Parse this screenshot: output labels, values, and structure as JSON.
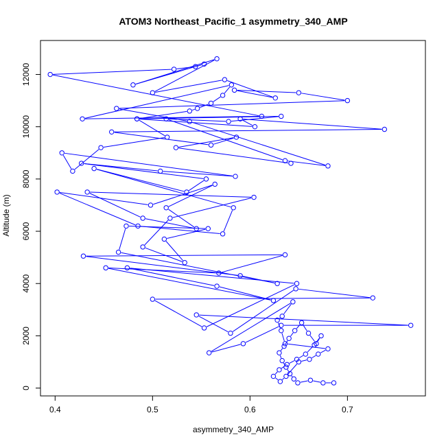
{
  "chart_data": {
    "type": "line",
    "title": "ATOM3 Northeast_Pacific_1 asymmetry_340_AMP",
    "xlabel": "asymmetry_340_AMP",
    "ylabel": "Altitude (m)",
    "xlim": [
      0.385,
      0.78
    ],
    "ylim": [
      -300,
      13300
    ],
    "x_ticks": [
      0.4,
      0.5,
      0.6,
      0.7
    ],
    "y_ticks": [
      0,
      2000,
      4000,
      6000,
      8000,
      10000,
      12000
    ],
    "grid": false,
    "legend": "none",
    "line_color": "#0000ff",
    "marker": "open-circle",
    "series": [
      {
        "x": [
          0.686,
          0.675,
          0.662,
          0.649,
          0.645,
          0.641,
          0.637,
          0.633,
          0.63,
          0.635,
          0.64,
          0.646,
          0.653,
          0.66,
          0.668,
          0.673,
          0.666,
          0.657,
          0.648,
          0.638,
          0.63,
          0.624,
          0.631,
          0.637,
          0.65,
          0.661,
          0.67,
          0.68,
          0.636,
          0.632,
          0.628,
          0.633,
          0.644,
          0.558,
          0.593,
          0.632,
          0.765,
          0.545,
          0.58,
          0.647,
          0.726,
          0.5,
          0.553,
          0.648,
          0.474,
          0.566,
          0.624,
          0.452,
          0.568,
          0.636,
          0.429,
          0.59,
          0.628,
          0.465,
          0.473,
          0.557,
          0.512,
          0.533,
          0.49,
          0.518,
          0.604,
          0.433,
          0.49,
          0.545,
          0.514,
          0.564,
          0.498,
          0.402,
          0.485,
          0.572,
          0.583,
          0.44,
          0.535,
          0.555,
          0.427,
          0.508,
          0.585,
          0.407,
          0.418,
          0.447,
          0.515,
          0.484,
          0.538,
          0.546,
          0.56,
          0.572,
          0.581,
          0.428,
          0.612,
          0.395,
          0.522,
          0.544,
          0.553,
          0.48,
          0.566,
          0.5,
          0.574,
          0.626,
          0.584,
          0.65,
          0.7,
          0.463,
          0.538,
          0.68,
          0.636,
          0.514,
          0.578,
          0.632,
          0.484,
          0.605,
          0.59,
          0.738,
          0.458,
          0.56,
          0.586,
          0.524,
          0.642
        ],
        "y": [
          200,
          200,
          300,
          200,
          350,
          550,
          800,
          1050,
          1350,
          1600,
          1900,
          2200,
          2500,
          2100,
          1700,
          2000,
          1650,
          1300,
          1100,
          900,
          700,
          450,
          250,
          450,
          1000,
          1100,
          1300,
          1500,
          1700,
          2200,
          2600,
          2750,
          3300,
          1350,
          1700,
          2400,
          2400,
          2800,
          2100,
          3800,
          3450,
          3400,
          2300,
          4000,
          4600,
          3900,
          3350,
          4600,
          4400,
          5100,
          5050,
          4300,
          4000,
          5200,
          6200,
          6100,
          5700,
          4800,
          5400,
          6500,
          7300,
          7500,
          6500,
          6100,
          6900,
          7800,
          7000,
          7500,
          6200,
          5900,
          6900,
          8400,
          7500,
          8000,
          8600,
          8300,
          8100,
          9000,
          8300,
          9200,
          9600,
          10300,
          10600,
          10700,
          10900,
          11200,
          11600,
          10300,
          10400,
          12000,
          12200,
          12300,
          12400,
          11600,
          12600,
          11300,
          11800,
          11100,
          11400,
          11300,
          11000,
          10700,
          10200,
          8500,
          8700,
          10300,
          10200,
          10400,
          10300,
          10000,
          10300,
          9900,
          9800,
          9300,
          9600,
          9200,
          8600
        ]
      }
    ]
  }
}
